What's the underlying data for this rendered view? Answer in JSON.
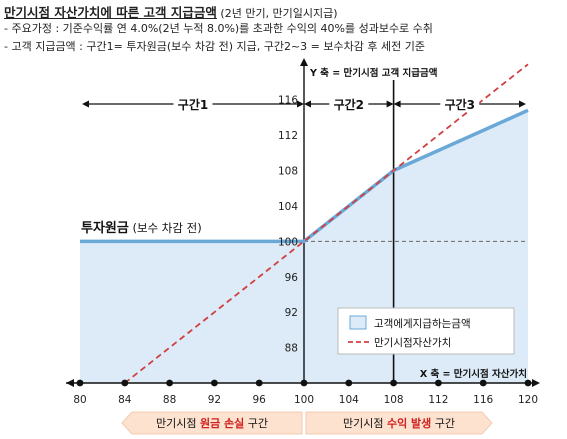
{
  "header": {
    "title_bold": "만기시점 자산가치에 따른 고객 지급금액",
    "title_sub": " (2년 만기, 만기일시지급)",
    "note1": "- 주요가정 : 기준수익률 연 4.0%(2년 누적 8.0%)를 초과한 수익의 40%를 성과보수로 수취",
    "note2": "- 고객 지급금액 : 구간1= 투자원금(보수 차감 전) 지급, 구간2~3 = 보수차감 후 세전 기준"
  },
  "chart_data": {
    "type": "area",
    "x_axis": {
      "label": "X 축 = 만기시점 자산가치",
      "ticks": [
        80,
        84,
        88,
        92,
        96,
        100,
        104,
        108,
        112,
        116,
        120
      ],
      "range": [
        80,
        120
      ]
    },
    "y_axis": {
      "label": "Y 축 = 만기시점 고객 지급금액",
      "ticks": [
        88,
        92,
        96,
        100,
        104,
        108,
        112,
        116
      ],
      "range": [
        84,
        118
      ]
    },
    "series": [
      {
        "name": "고객에게지급하는금액",
        "kind": "area",
        "color": "#6aa8d8",
        "fill": "#dcebf7",
        "points": [
          [
            80,
            100
          ],
          [
            100,
            100
          ],
          [
            108,
            108
          ],
          [
            120,
            114.8
          ]
        ]
      },
      {
        "name": "만기시점자산가치",
        "kind": "dashed-line",
        "color": "#d04040",
        "points": [
          [
            84,
            84
          ],
          [
            120,
            120
          ]
        ]
      }
    ],
    "reference_lines": {
      "principal_y": 100,
      "vertical_x": [
        100,
        108
      ]
    },
    "zones": [
      {
        "label": "구간1",
        "from": 80,
        "to": 100
      },
      {
        "label": "구간2",
        "from": 100,
        "to": 108
      },
      {
        "label": "구간3",
        "from": 108,
        "to": 120
      }
    ],
    "annotation": {
      "principal_bold": "투자원금",
      "principal_sub": " (보수 차감 전)"
    },
    "legend": {
      "position": "bottom-right",
      "items": [
        "고객에게지급하는금액",
        "만기시점자산가치"
      ]
    },
    "bottom_bands": [
      {
        "pre": "만기시점 ",
        "highlight": "원금 손실",
        "post": " 구간",
        "from": 80,
        "to": 100
      },
      {
        "pre": "만기시점 ",
        "highlight": "수익 발생",
        "post": " 구간",
        "from": 100,
        "to": 120
      }
    ],
    "highlight_color": "#d02020"
  }
}
